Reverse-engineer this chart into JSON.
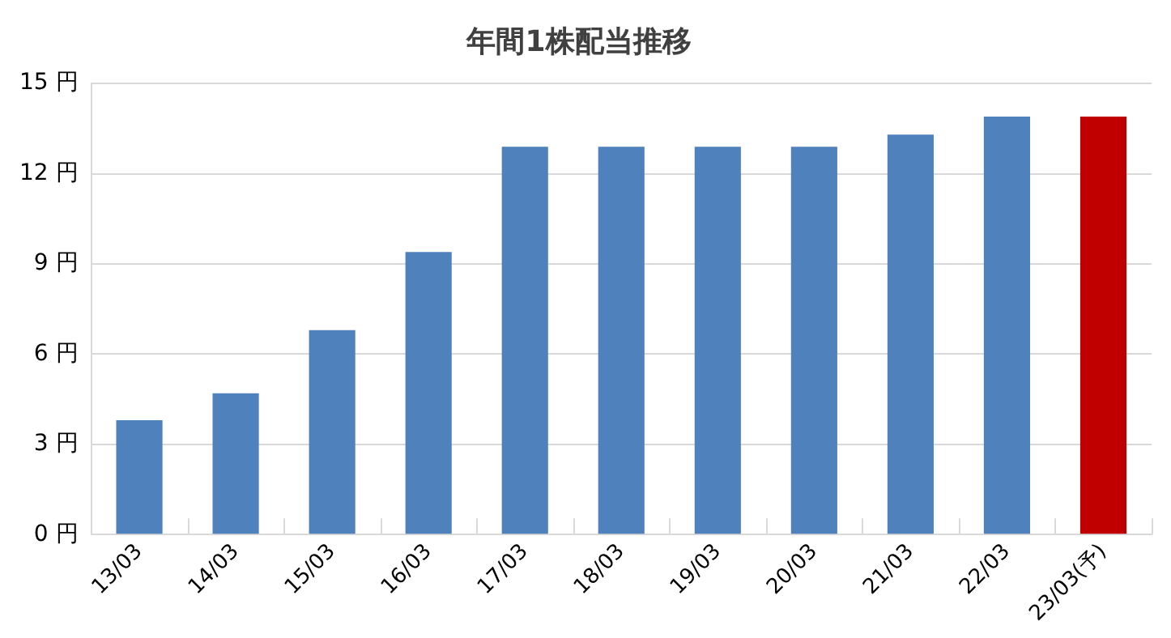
{
  "chart_data": {
    "type": "bar",
    "title": "年間1株配当推移",
    "categories": [
      "13/03",
      "14/03",
      "15/03",
      "16/03",
      "17/03",
      "18/03",
      "19/03",
      "20/03",
      "21/03",
      "22/03",
      "23/03(予)"
    ],
    "values": [
      3.8,
      4.7,
      6.8,
      9.4,
      12.9,
      12.9,
      12.9,
      12.9,
      13.3,
      13.9,
      13.9
    ],
    "colors": [
      "#4f81bd",
      "#4f81bd",
      "#4f81bd",
      "#4f81bd",
      "#4f81bd",
      "#4f81bd",
      "#4f81bd",
      "#4f81bd",
      "#4f81bd",
      "#4f81bd",
      "#c00000"
    ],
    "ylim": [
      0,
      15
    ],
    "yticks": [
      {
        "value": 0,
        "label": "0 円"
      },
      {
        "value": 3,
        "label": "3 円"
      },
      {
        "value": 6,
        "label": "6 円"
      },
      {
        "value": 9,
        "label": "9 円"
      },
      {
        "value": 12,
        "label": "12 円"
      },
      {
        "value": 15,
        "label": "15 円"
      }
    ],
    "grid": "y",
    "legend": false
  }
}
